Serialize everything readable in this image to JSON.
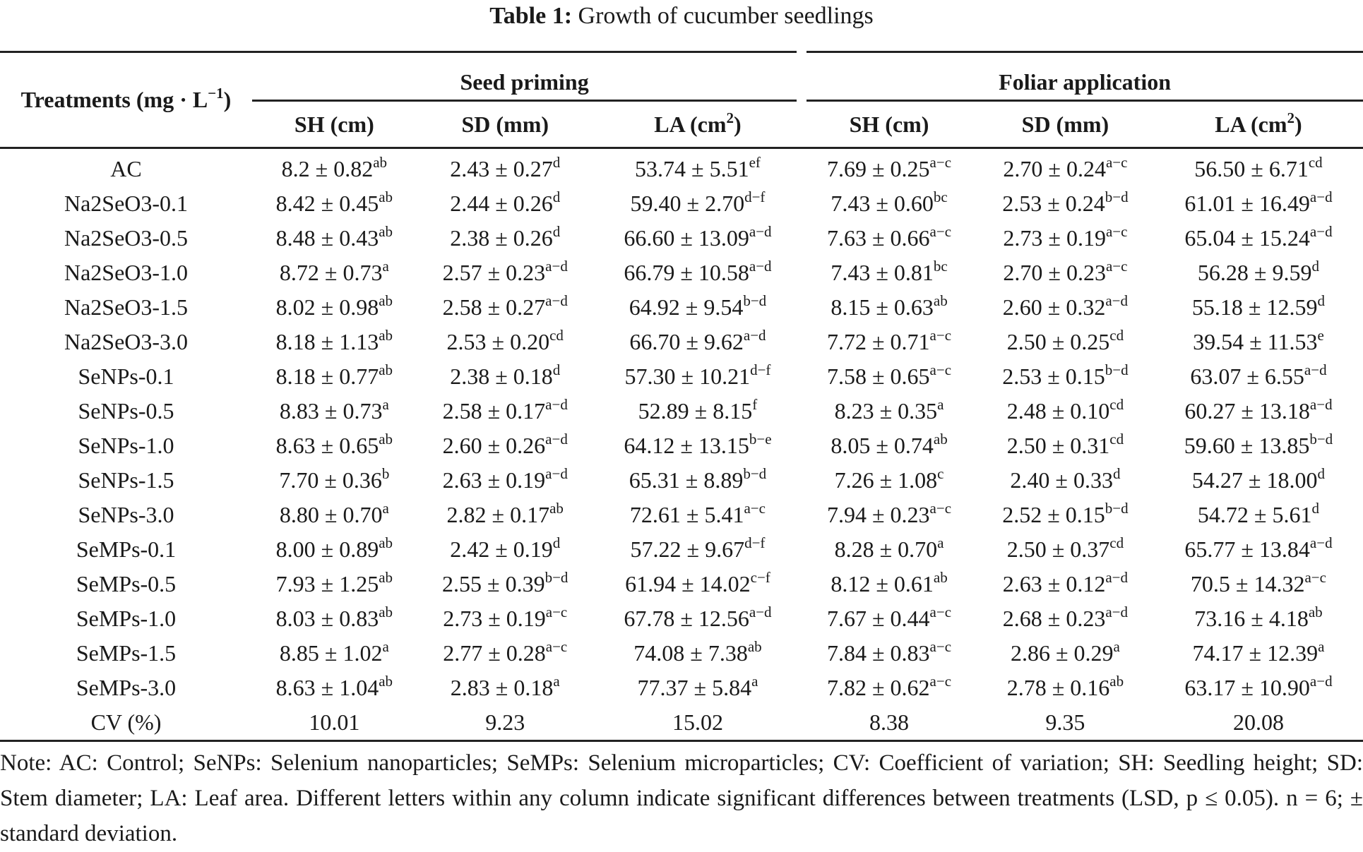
{
  "title": {
    "label": "Table 1:",
    "text": "Growth of cucumber seedlings"
  },
  "header": {
    "treatments": "Treatments (mg · L",
    "treatments_sup": "−1",
    "treatments_close": ")",
    "groups": [
      "Seed priming",
      "Foliar application"
    ],
    "columns": [
      {
        "label": "SH (cm)",
        "sup": ""
      },
      {
        "label": "SD (mm)",
        "sup": ""
      },
      {
        "label": "LA (cm",
        "sup": "2",
        "close": ")"
      },
      {
        "label": "SH (cm)",
        "sup": ""
      },
      {
        "label": "SD (mm)",
        "sup": ""
      },
      {
        "label": "LA (cm",
        "sup": "2",
        "close": ")"
      }
    ]
  },
  "rows": [
    {
      "t": "AC",
      "c": [
        [
          "8.2 ± 0.82",
          "ab"
        ],
        [
          "2.43 ± 0.27",
          "d"
        ],
        [
          "53.74 ± 5.51",
          "ef"
        ],
        [
          "7.69 ± 0.25",
          "a−c"
        ],
        [
          "2.70 ± 0.24",
          "a−c"
        ],
        [
          "56.50 ± 6.71",
          "cd"
        ]
      ]
    },
    {
      "t": "Na2SeO3-0.1",
      "c": [
        [
          "8.42 ± 0.45",
          "ab"
        ],
        [
          "2.44 ± 0.26",
          "d"
        ],
        [
          "59.40 ± 2.70",
          "d−f"
        ],
        [
          "7.43 ± 0.60",
          "bc"
        ],
        [
          "2.53 ± 0.24",
          "b−d"
        ],
        [
          "61.01 ± 16.49",
          "a−d"
        ]
      ]
    },
    {
      "t": "Na2SeO3-0.5",
      "c": [
        [
          "8.48 ± 0.43",
          "ab"
        ],
        [
          "2.38 ± 0.26",
          "d"
        ],
        [
          "66.60 ± 13.09",
          "a−d"
        ],
        [
          "7.63 ± 0.66",
          "a−c"
        ],
        [
          "2.73 ± 0.19",
          "a−c"
        ],
        [
          "65.04 ± 15.24",
          "a−d"
        ]
      ]
    },
    {
      "t": "Na2SeO3-1.0",
      "c": [
        [
          "8.72 ± 0.73",
          "a"
        ],
        [
          "2.57 ± 0.23",
          "a−d"
        ],
        [
          "66.79 ± 10.58",
          "a−d"
        ],
        [
          "7.43 ± 0.81",
          "bc"
        ],
        [
          "2.70 ± 0.23",
          "a−c"
        ],
        [
          "56.28 ± 9.59",
          "d"
        ]
      ]
    },
    {
      "t": "Na2SeO3-1.5",
      "c": [
        [
          "8.02 ± 0.98",
          "ab"
        ],
        [
          "2.58 ± 0.27",
          "a−d"
        ],
        [
          "64.92 ± 9.54",
          "b−d"
        ],
        [
          "8.15 ± 0.63",
          "ab"
        ],
        [
          "2.60 ± 0.32",
          "a−d"
        ],
        [
          "55.18 ± 12.59",
          "d"
        ]
      ]
    },
    {
      "t": "Na2SeO3-3.0",
      "c": [
        [
          "8.18 ± 1.13",
          "ab"
        ],
        [
          "2.53 ± 0.20",
          "cd"
        ],
        [
          "66.70 ± 9.62",
          "a−d"
        ],
        [
          "7.72 ± 0.71",
          "a−c"
        ],
        [
          "2.50 ± 0.25",
          "cd"
        ],
        [
          "39.54 ± 11.53",
          "e"
        ]
      ]
    },
    {
      "t": "SeNPs-0.1",
      "c": [
        [
          "8.18 ± 0.77",
          "ab"
        ],
        [
          "2.38 ± 0.18",
          "d"
        ],
        [
          "57.30 ± 10.21",
          "d−f"
        ],
        [
          "7.58 ± 0.65",
          "a−c"
        ],
        [
          "2.53 ± 0.15",
          "b−d"
        ],
        [
          "63.07 ± 6.55",
          "a−d"
        ]
      ]
    },
    {
      "t": "SeNPs-0.5",
      "c": [
        [
          "8.83 ± 0.73",
          "a"
        ],
        [
          "2.58 ± 0.17",
          "a−d"
        ],
        [
          "52.89 ± 8.15",
          "f"
        ],
        [
          "8.23 ± 0.35",
          "a"
        ],
        [
          "2.48 ± 0.10",
          "cd"
        ],
        [
          "60.27 ± 13.18",
          "a−d"
        ]
      ]
    },
    {
      "t": "SeNPs-1.0",
      "c": [
        [
          "8.63 ± 0.65",
          "ab"
        ],
        [
          "2.60 ± 0.26",
          "a−d"
        ],
        [
          "64.12 ± 13.15",
          "b−e"
        ],
        [
          "8.05 ± 0.74",
          "ab"
        ],
        [
          "2.50 ± 0.31",
          "cd"
        ],
        [
          "59.60 ± 13.85",
          "b−d"
        ]
      ]
    },
    {
      "t": "SeNPs-1.5",
      "c": [
        [
          "7.70 ± 0.36",
          "b"
        ],
        [
          "2.63 ± 0.19",
          "a−d"
        ],
        [
          "65.31 ± 8.89",
          "b−d"
        ],
        [
          "7.26 ± 1.08",
          "c"
        ],
        [
          "2.40 ± 0.33",
          "d"
        ],
        [
          "54.27 ± 18.00",
          "d"
        ]
      ]
    },
    {
      "t": "SeNPs-3.0",
      "c": [
        [
          "8.80 ± 0.70",
          "a"
        ],
        [
          "2.82 ± 0.17",
          "ab"
        ],
        [
          "72.61 ± 5.41",
          "a−c"
        ],
        [
          "7.94 ± 0.23",
          "a−c"
        ],
        [
          "2.52 ± 0.15",
          "b−d"
        ],
        [
          "54.72 ± 5.61",
          "d"
        ]
      ]
    },
    {
      "t": "SeMPs-0.1",
      "c": [
        [
          "8.00 ± 0.89",
          "ab"
        ],
        [
          "2.42 ± 0.19",
          "d"
        ],
        [
          "57.22 ± 9.67",
          "d−f"
        ],
        [
          "8.28 ± 0.70",
          "a"
        ],
        [
          "2.50 ± 0.37",
          "cd"
        ],
        [
          "65.77 ± 13.84",
          "a−d"
        ]
      ]
    },
    {
      "t": "SeMPs-0.5",
      "c": [
        [
          "7.93 ± 1.25",
          "ab"
        ],
        [
          "2.55 ± 0.39",
          "b−d"
        ],
        [
          "61.94 ± 14.02",
          "c−f"
        ],
        [
          "8.12 ± 0.61",
          "ab"
        ],
        [
          "2.63 ± 0.12",
          "a−d"
        ],
        [
          "70.5 ± 14.32",
          "a−c"
        ]
      ]
    },
    {
      "t": "SeMPs-1.0",
      "c": [
        [
          "8.03 ± 0.83",
          "ab"
        ],
        [
          "2.73 ± 0.19",
          "a−c"
        ],
        [
          "67.78 ± 12.56",
          "a−d"
        ],
        [
          "7.67 ± 0.44",
          "a−c"
        ],
        [
          "2.68 ± 0.23",
          "a−d"
        ],
        [
          "73.16 ± 4.18",
          "ab"
        ]
      ]
    },
    {
      "t": "SeMPs-1.5",
      "c": [
        [
          "8.85 ± 1.02",
          "a"
        ],
        [
          "2.77 ± 0.28",
          "a−c"
        ],
        [
          "74.08 ± 7.38",
          "ab"
        ],
        [
          "7.84 ± 0.83",
          "a−c"
        ],
        [
          "2.86 ± 0.29",
          "a"
        ],
        [
          "74.17 ± 12.39",
          "a"
        ]
      ]
    },
    {
      "t": "SeMPs-3.0",
      "c": [
        [
          "8.63 ± 1.04",
          "ab"
        ],
        [
          "2.83 ± 0.18",
          "a"
        ],
        [
          "77.37 ± 5.84",
          "a"
        ],
        [
          "7.82 ± 0.62",
          "a−c"
        ],
        [
          "2.78 ± 0.16",
          "ab"
        ],
        [
          "63.17 ± 10.90",
          "a−d"
        ]
      ]
    },
    {
      "t": "CV (%)",
      "c": [
        [
          "10.01",
          ""
        ],
        [
          "9.23",
          ""
        ],
        [
          "15.02",
          ""
        ],
        [
          "8.38",
          ""
        ],
        [
          "9.35",
          ""
        ],
        [
          "20.08",
          ""
        ]
      ]
    }
  ],
  "note": "Note: AC: Control; SeNPs: Selenium nanoparticles; SeMPs: Selenium microparticles; CV: Coefficient of variation; SH: Seedling height; SD: Stem diameter; LA: Leaf area. Different letters within any column indicate significant differences between treatments (LSD, p ≤ 0.05). n = 6; ± standard deviation."
}
